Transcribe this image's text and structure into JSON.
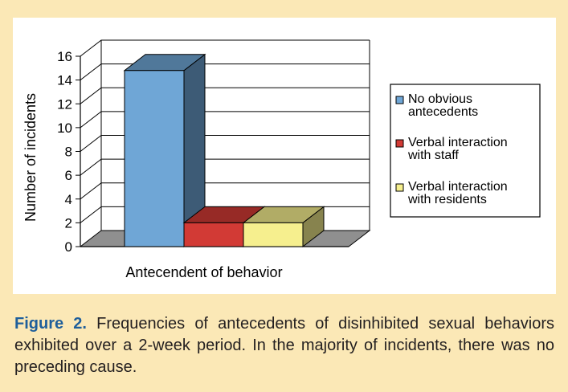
{
  "chart_data": {
    "type": "bar",
    "categories": [
      "No obvious antecedents",
      "Verbal interaction with staff",
      "Verbal interaction with residents"
    ],
    "values": [
      14.8,
      2,
      2
    ],
    "xlabel": "Antecendent of behavior",
    "ylabel": "Number of incidents",
    "ylim": [
      0,
      16
    ],
    "yticks": [
      "0",
      "2",
      "4",
      "6",
      "8",
      "10",
      "12",
      "14",
      "16"
    ],
    "grid": true,
    "legend_position": "right",
    "legend": [
      {
        "line1": "No obvious",
        "line2": "antecedents",
        "color": "#6fa6d6"
      },
      {
        "line1": "Verbal interaction",
        "line2": "with staff",
        "color": "#d23a35"
      },
      {
        "line1": "Verbal interaction",
        "line2": "with residents",
        "color": "#f6ef8e"
      }
    ]
  },
  "caption": {
    "label": "Figure 2.",
    "text": " Frequencies of antecedents of disinhibited sexual behaviors exhibited over a 2-week period. In the majority of incidents, there was no preceding cause."
  }
}
